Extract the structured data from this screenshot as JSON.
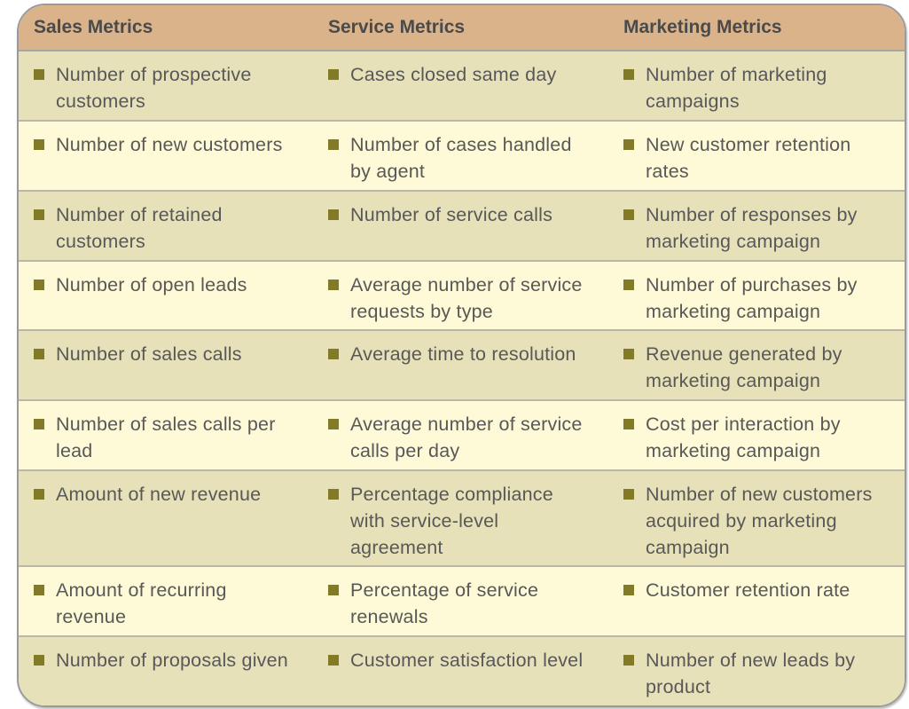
{
  "headers": [
    "Sales Metrics",
    "Service Metrics",
    "Marketing Metrics"
  ],
  "colors": {
    "header": "#dbb38a",
    "row_shaded": "#e7e1b9",
    "row_light": "#fefad7",
    "bullet": "#837a28"
  },
  "rows": [
    [
      "Number of prospective customers",
      "Cases closed same day",
      "Number of marketing campaigns"
    ],
    [
      "Number of new customers",
      "Number of cases handled by agent",
      "New customer retention rates"
    ],
    [
      "Number of retained customers",
      "Number of service calls",
      "Number of responses by marketing campaign"
    ],
    [
      "Number of open leads",
      "Average number of service requests by type",
      "Number of purchases by marketing campaign"
    ],
    [
      "Number of sales calls",
      "Average time to resolution",
      "Revenue generated by marketing campaign"
    ],
    [
      "Number of sales calls per lead",
      "Average number of service calls per day",
      "Cost per interaction by marketing campaign"
    ],
    [
      "Amount of new revenue",
      "Percentage compliance with service-level agreement",
      "Number of new customers acquired by marketing campaign"
    ],
    [
      "Amount of recurring revenue",
      "Percentage of service renewals",
      "Customer retention rate"
    ],
    [
      "Number of proposals given",
      "Customer satisfaction level",
      "Number of new leads by product"
    ]
  ]
}
